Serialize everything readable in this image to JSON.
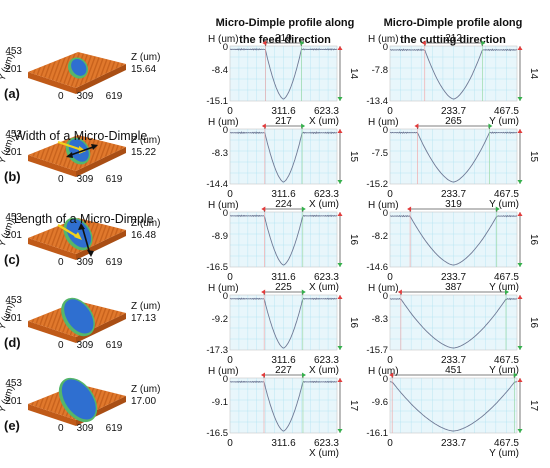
{
  "headers": {
    "feed_line1": "Micro-Dimple  profile along",
    "feed_line2": "the feed direction",
    "cut_line1": "Micro-Dimple profile along",
    "cut_line2": "the cutting  direction"
  },
  "annotations": {
    "width_label": "Width of a Micro-Dimple",
    "length_label": "Length of a Micro-Dimple"
  },
  "colors": {
    "plot_bg": "#e8f6fb",
    "grid": "#a8dff0",
    "trace": "#6f7a96",
    "marker_red": "#e23b3b",
    "marker_green": "#35b04c",
    "surface": "#e0782c",
    "dimple_inner": "#2f6fd0",
    "dimple_outer": "#55b66a",
    "arrow_yellow": "#f2d21e"
  },
  "chart_data": [
    {
      "type": "line",
      "row_label": "(a)",
      "surface_3d": {
        "y_ticks": [
          "453",
          "201"
        ],
        "y_label": "Y (um)",
        "x_ticks": [
          "0",
          "309",
          "619"
        ],
        "z_label": "Z (um)",
        "z_value": "15.64"
      },
      "feed": {
        "h_label": "H (um)",
        "x_label": "X (um)",
        "width": "210",
        "depth_label": "14",
        "y_ticks": [
          "-8.4",
          "-15.1"
        ],
        "x_ticks": [
          "0",
          "311.6",
          "623.3"
        ],
        "xlim": [
          0,
          623.3
        ],
        "ylim": [
          -15.1,
          0
        ],
        "profile": {
          "flat": -0.4,
          "min": -15.1,
          "left": 206,
          "right": 416
        }
      },
      "cutting": {
        "h_label": "H (um)",
        "x_label": "Y (um)",
        "width": "212",
        "depth_label": "14",
        "y_ticks": [
          "-7.8",
          "-13.4"
        ],
        "x_ticks": [
          "0",
          "233.7",
          "467.5"
        ],
        "xlim": [
          0,
          467.5
        ],
        "ylim": [
          -13.4,
          0
        ],
        "profile": {
          "flat": -0.5,
          "min": -13.4,
          "left": 128,
          "right": 340
        }
      }
    },
    {
      "type": "line",
      "row_label": "(b)",
      "surface_3d": {
        "y_ticks": [
          "453",
          "201"
        ],
        "y_label": "Y (um)",
        "x_ticks": [
          "0",
          "309",
          "619"
        ],
        "z_label": "Z (um)",
        "z_value": "15.22"
      },
      "feed": {
        "h_label": "H (um)",
        "x_label": "X (um)",
        "width": "217",
        "depth_label": "15",
        "y_ticks": [
          "-8.3",
          "-14.4"
        ],
        "x_ticks": [
          "0",
          "311.6",
          "623.3"
        ],
        "xlim": [
          0,
          623.3
        ],
        "ylim": [
          -14.4,
          0
        ],
        "profile": {
          "flat": -0.5,
          "min": -14.4,
          "left": 203,
          "right": 420
        }
      },
      "cutting": {
        "h_label": "H (um)",
        "x_label": "Y (um)",
        "width": "265",
        "depth_label": "15",
        "y_ticks": [
          "-7.5",
          "-15.2"
        ],
        "x_ticks": [
          "0",
          "233.7",
          "467.5"
        ],
        "xlim": [
          0,
          467.5
        ],
        "ylim": [
          -15.2,
          0
        ],
        "profile": {
          "flat": -0.5,
          "min": -15.2,
          "left": 101,
          "right": 366
        }
      }
    },
    {
      "type": "line",
      "row_label": "(c)",
      "surface_3d": {
        "y_ticks": [
          "453",
          "201"
        ],
        "y_label": "Y (um)",
        "x_ticks": [
          "0",
          "309",
          "619"
        ],
        "z_label": "Z (um)",
        "z_value": "16.48"
      },
      "feed": {
        "h_label": "H (um)",
        "x_label": "X (um)",
        "width": "224",
        "depth_label": "16",
        "y_ticks": [
          "-8.9",
          "-16.5"
        ],
        "x_ticks": [
          "0",
          "311.6",
          "623.3"
        ],
        "xlim": [
          0,
          623.3
        ],
        "ylim": [
          -16.5,
          0
        ],
        "profile": {
          "flat": -0.6,
          "min": -16.5,
          "left": 200,
          "right": 424
        }
      },
      "cutting": {
        "h_label": "H (um)",
        "x_label": "Y (um)",
        "width": "319",
        "depth_label": "16",
        "y_ticks": [
          "-8.2",
          "-14.6"
        ],
        "x_ticks": [
          "0",
          "233.7",
          "467.5"
        ],
        "xlim": [
          0,
          467.5
        ],
        "ylim": [
          -14.6,
          0
        ],
        "profile": {
          "flat": -0.6,
          "min": -14.6,
          "left": 74,
          "right": 393
        }
      }
    },
    {
      "type": "line",
      "row_label": "(d)",
      "surface_3d": {
        "y_ticks": [
          "453",
          "201"
        ],
        "y_label": "Y (um)",
        "x_ticks": [
          "0",
          "309",
          "619"
        ],
        "z_label": "Z (um)",
        "z_value": "17.13"
      },
      "feed": {
        "h_label": "H (um)",
        "x_label": "X (um)",
        "width": "225",
        "depth_label": "16",
        "y_ticks": [
          "-9.2",
          "-17.3"
        ],
        "x_ticks": [
          "0",
          "311.6",
          "623.3"
        ],
        "xlim": [
          0,
          623.3
        ],
        "ylim": [
          -17.3,
          0
        ],
        "profile": {
          "flat": -0.6,
          "min": -17.3,
          "left": 199,
          "right": 424
        }
      },
      "cutting": {
        "h_label": "H (um)",
        "x_label": "Y (um)",
        "width": "387",
        "depth_label": "16",
        "y_ticks": [
          "-8.3",
          "-15.7"
        ],
        "x_ticks": [
          "0",
          "233.7",
          "467.5"
        ],
        "xlim": [
          0,
          467.5
        ],
        "ylim": [
          -15.7,
          0
        ],
        "profile": {
          "flat": -0.6,
          "min": -15.7,
          "left": 40,
          "right": 427
        }
      }
    },
    {
      "type": "line",
      "row_label": "(e)",
      "surface_3d": {
        "y_ticks": [
          "453",
          "201"
        ],
        "y_label": "Y (um)",
        "x_ticks": [
          "0",
          "309",
          "619"
        ],
        "z_label": "Z (um)",
        "z_value": "17.00"
      },
      "feed": {
        "h_label": "H (um)",
        "x_label": "X (um)",
        "width": "227",
        "depth_label": "17",
        "y_ticks": [
          "-9.1",
          "-16.5"
        ],
        "x_ticks": [
          "0",
          "311.6",
          "623.3"
        ],
        "xlim": [
          0,
          623.3
        ],
        "ylim": [
          -16.5,
          0
        ],
        "profile": {
          "flat": -0.6,
          "min": -16.5,
          "left": 198,
          "right": 425
        }
      },
      "cutting": {
        "h_label": "H (um)",
        "x_label": "Y (um)",
        "width": "451",
        "depth_label": "17",
        "y_ticks": [
          "-9.6",
          "-16.1"
        ],
        "x_ticks": [
          "0",
          "233.7",
          "467.5"
        ],
        "xlim": [
          0,
          467.5
        ],
        "ylim": [
          -16.1,
          0
        ],
        "profile": {
          "flat": -0.6,
          "min": -16.1,
          "left": 8,
          "right": 459
        }
      }
    }
  ]
}
